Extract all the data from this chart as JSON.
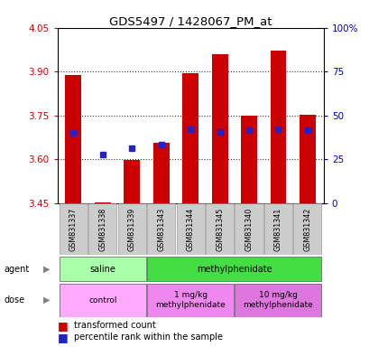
{
  "title": "GDS5497 / 1428067_PM_at",
  "samples": [
    "GSM831337",
    "GSM831338",
    "GSM831339",
    "GSM831343",
    "GSM831344",
    "GSM831345",
    "GSM831340",
    "GSM831341",
    "GSM831342"
  ],
  "red_values": [
    3.887,
    3.451,
    3.596,
    3.657,
    3.893,
    3.96,
    3.748,
    3.971,
    3.752
  ],
  "blue_values": [
    3.689,
    3.617,
    3.638,
    3.651,
    3.703,
    3.693,
    3.698,
    3.703,
    3.698
  ],
  "y_min": 3.45,
  "y_max": 4.05,
  "y_ticks": [
    3.45,
    3.6,
    3.75,
    3.9,
    4.05
  ],
  "y_right_ticks": [
    0,
    25,
    50,
    75,
    100
  ],
  "bar_width": 0.55,
  "bar_color": "#cc0000",
  "dot_color": "#2222cc",
  "dot_size": 4.5,
  "agent_groups": [
    {
      "label": "saline",
      "start": 0,
      "end": 3,
      "color": "#aaffaa"
    },
    {
      "label": "methylphenidate",
      "start": 3,
      "end": 9,
      "color": "#44dd44"
    }
  ],
  "dose_groups": [
    {
      "label": "control",
      "start": 0,
      "end": 3,
      "color": "#ffaaff"
    },
    {
      "label": "1 mg/kg\nmethylphenidate",
      "start": 3,
      "end": 6,
      "color": "#ee88ee"
    },
    {
      "label": "10 mg/kg\nmethylphenidate",
      "start": 6,
      "end": 9,
      "color": "#dd77dd"
    }
  ],
  "legend_red": "transformed count",
  "legend_blue": "percentile rank within the sample",
  "left_color": "#cc0000",
  "right_color": "#0000cc",
  "tick_label_bg": "#cccccc",
  "grid_linestyle": "dotted",
  "grid_color": "#333333",
  "grid_linewidth": 0.8
}
